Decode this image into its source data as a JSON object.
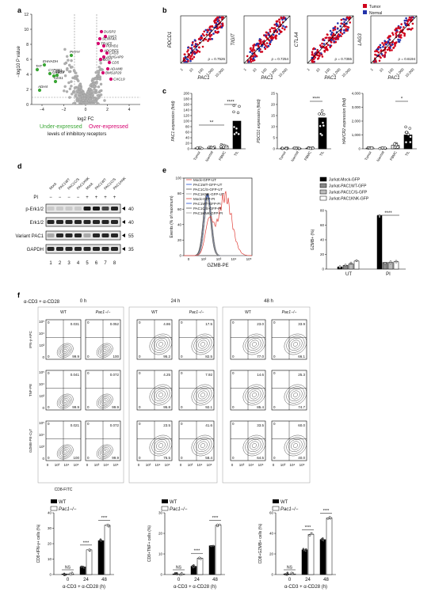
{
  "panels": {
    "a": "a",
    "b": "b",
    "c": "c",
    "d": "d",
    "e": "e",
    "f": "f"
  },
  "panel_a": {
    "ylabel": "−log10 P value",
    "xlabel": "log2 FC",
    "yticks": [
      "0",
      "2",
      "4",
      "6",
      "8",
      "10",
      "12"
    ],
    "xticks": [
      "−4",
      "−2",
      "0",
      "2",
      "4"
    ],
    "under_label": "Under-expressed",
    "over_label": "Over-expressed",
    "caption": "levels of inhibitory receptors",
    "over_genes": [
      "DUSP2",
      "JAK3",
      "SEMA4A",
      "TRAF5",
      "PDHD1",
      "ADGRE5",
      "LAG3",
      "ARHGAP9",
      "CD27",
      "CD5",
      "ADAM8",
      "BMS1P20",
      "CXCL9"
    ],
    "under_genes": [
      "PHYH",
      "EHHADH",
      "TAT",
      "CYP8B1",
      "GRB14",
      "CD70",
      "CES1",
      "ADH4"
    ],
    "colors": {
      "over": "#d6006f",
      "under": "#3aa635",
      "grey": "#b0b0b0"
    }
  },
  "panel_b": {
    "legend": [
      "Tumor",
      "Normal"
    ],
    "legend_colors": [
      "#d0021b",
      "#2233aa"
    ],
    "xlabel": "PAC1",
    "plots": [
      {
        "ylabel": "PDCD1",
        "rho": "ρ = 0.7526"
      },
      {
        "ylabel": "TIGIT",
        "rho": "ρ = 0.7254"
      },
      {
        "ylabel": "CTLA4",
        "rho": "ρ = 0.7355"
      },
      {
        "ylabel": "LAG3",
        "rho": "ρ = 0.6194"
      }
    ],
    "ticks": [
      "1",
      "10",
      "100",
      "1,000",
      "10,000"
    ]
  },
  "panel_c": {
    "groups": [
      "Tumor",
      "Normal",
      "PBMC",
      "TIL"
    ],
    "charts": [
      {
        "ylabel": "PAC1 expression (fold)",
        "ymax": 200,
        "yticks": [
          "0",
          "20",
          "40",
          "60",
          "80",
          "100",
          "120",
          "140",
          "160",
          "180",
          "200"
        ],
        "sig": [
          "**",
          "****"
        ]
      },
      {
        "ylabel": "PDCD1 expression (fold)",
        "ymax": 25,
        "yticks": [
          "0",
          "5",
          "10",
          "15",
          "20",
          "25"
        ],
        "sig": [
          "****"
        ]
      },
      {
        "ylabel": "HAVCR2 expression (fold)",
        "ymax": 4000,
        "yticks": [
          "0",
          "1,000",
          "2,000",
          "3,000",
          "4,000"
        ],
        "sig": [
          "*"
        ]
      }
    ]
  },
  "panel_d": {
    "col_headers": [
      "Mock",
      "PAC1WT",
      "PAC1C/S",
      "PAC1KNK",
      "Mock",
      "PAC1WT",
      "PAC1C/S",
      "PAC1KNK"
    ],
    "pi_label": "PI",
    "pi_signs": [
      "−",
      "−",
      "−",
      "−",
      "+",
      "+",
      "+",
      "+"
    ],
    "rows": [
      {
        "label": "p-Erk1/2",
        "kda": "40"
      },
      {
        "label": "Erk1/2",
        "kda": "40"
      },
      {
        "label": "Variant PAC1",
        "kda": "55"
      },
      {
        "label": "GAPDH",
        "kda": "35"
      }
    ],
    "lanes": [
      "1",
      "2",
      "3",
      "4",
      "5",
      "6",
      "7",
      "8"
    ]
  },
  "panel_e": {
    "flow_legend": [
      "Mock-GFP-UT",
      "PAC1WT-GFP-UT",
      "PAC1C/S-GFP-UT",
      "PAC1KNK-GFP-UT",
      "Mock-GFP-PI",
      "PAC1WT-GFP-PI",
      "PAC1C/S-GFP-PI",
      "PAC1KNK-GFP-PI"
    ],
    "flow_colors": [
      "#e0403a",
      "#1f4fd0",
      "#555555",
      "#9a9a9a",
      "#e0403a",
      "#1f4fd0",
      "#555555",
      "#9a9a9a"
    ],
    "flow_ylabel": "Events (% of maximum)",
    "flow_xlabel": "GZMB-PE",
    "bar_legend": [
      "Jurkat-Mock-GFP",
      "Jurkat-PAC1WT-GFP",
      "Jurkat-PAC1C/S-GFP",
      "Jurkat-PAC1KNK-GFP"
    ],
    "bar_ylabel": "GZMB+ (%)",
    "bar_yticks": [
      "0",
      "20",
      "40",
      "60",
      "80"
    ],
    "bar_groups": [
      "UT",
      "PI"
    ],
    "sig": "****"
  },
  "panel_f": {
    "stim": "α-CD3 + α-CD28",
    "times": [
      "0 h",
      "24 h",
      "48 h"
    ],
    "genotypes": [
      "WT",
      "Pac1−/−"
    ],
    "row_ylabels": [
      "IFN-γ-APC",
      "TNF-PE",
      "GZMB-PE-Cy7"
    ],
    "xaxis_label": "CD8-FITC",
    "quad": [
      [
        [
          "0.031",
          "99.9"
        ],
        [
          "0.052",
          "100"
        ],
        [
          "4.86",
          "95.2"
        ],
        [
          "17.5",
          "82.5"
        ],
        [
          "23.0",
          "77.0"
        ],
        [
          "33.9",
          "66.1"
        ]
      ],
      [
        [
          "0.041",
          "99.9"
        ],
        [
          "0.072",
          "99.9"
        ],
        [
          "4.25",
          "95.8"
        ],
        [
          "7.92",
          "92.1"
        ],
        [
          "14.6",
          "85.4"
        ],
        [
          "25.3",
          "74.7"
        ]
      ],
      [
        [
          "0.021",
          "100"
        ],
        [
          "0.072",
          "99.9"
        ],
        [
          "23.5",
          "76.5"
        ],
        [
          "41.6",
          "58.4"
        ],
        [
          "33.5",
          "64.5"
        ],
        [
          "60.0",
          "40.0"
        ]
      ]
    ],
    "bars": [
      {
        "ylabel": "CD8+IFN-γ+ cells (%)",
        "yticks": [
          "0",
          "10",
          "20",
          "30",
          "40"
        ],
        "ymax": 40
      },
      {
        "ylabel": "CD8+TNF+ cells (%)",
        "yticks": [
          "0",
          "10",
          "20",
          "30"
        ],
        "ymax": 30
      },
      {
        "ylabel": "CD8+GZMB+ cells (%)",
        "yticks": [
          "0",
          "20",
          "40",
          "60"
        ],
        "ymax": 60
      }
    ],
    "bar_x": [
      "0",
      "24",
      "48"
    ],
    "bar_xlabel": "α-CD3 + α-CD28 (h)",
    "sig": [
      "NS",
      "****",
      "****"
    ]
  },
  "chart_data": [
    {
      "type": "bar",
      "title": "",
      "ylabel": "PAC1 expression (fold)",
      "categories": [
        "Tumor",
        "Normal",
        "PBMC",
        "TIL"
      ],
      "values": [
        3,
        5,
        10,
        100
      ],
      "ylim": [
        0,
        200
      ]
    },
    {
      "type": "bar",
      "title": "",
      "ylabel": "PDCD1 expression (fold)",
      "categories": [
        "Tumor",
        "Normal",
        "PBMC",
        "TIL"
      ],
      "values": [
        0.2,
        0.2,
        0.3,
        14
      ],
      "ylim": [
        0,
        25
      ]
    },
    {
      "type": "bar",
      "title": "",
      "ylabel": "HAVCR2 expression (fold)",
      "categories": [
        "Tumor",
        "Normal",
        "PBMC",
        "TIL"
      ],
      "values": [
        50,
        40,
        250,
        1000
      ],
      "ylim": [
        0,
        4000
      ]
    },
    {
      "type": "bar",
      "title": "",
      "ylabel": "GZMB+ (%)",
      "categories": [
        "UT",
        "PI"
      ],
      "series": [
        {
          "name": "Jurkat-Mock-GFP",
          "values": [
            3,
            73
          ]
        },
        {
          "name": "Jurkat-PAC1WT-GFP",
          "values": [
            5,
            9
          ]
        },
        {
          "name": "Jurkat-PAC1C/S-GFP",
          "values": [
            7,
            9
          ]
        },
        {
          "name": "Jurkat-PAC1KNK-GFP",
          "values": [
            11,
            10
          ]
        }
      ],
      "ylim": [
        0,
        80
      ]
    },
    {
      "type": "bar",
      "title": "",
      "ylabel": "CD8+IFN-γ+ cells (%)",
      "categories": [
        "0",
        "24",
        "48"
      ],
      "series": [
        {
          "name": "WT",
          "values": [
            0,
            5,
            22
          ]
        },
        {
          "name": "Pac1−/−",
          "values": [
            0,
            16,
            32
          ]
        }
      ],
      "ylim": [
        0,
        40
      ]
    },
    {
      "type": "bar",
      "title": "",
      "ylabel": "CD8+TNF+ cells (%)",
      "categories": [
        "0",
        "24",
        "48"
      ],
      "series": [
        {
          "name": "WT",
          "values": [
            0,
            4,
            14
          ]
        },
        {
          "name": "Pac1−/−",
          "values": [
            0,
            8,
            24
          ]
        }
      ],
      "ylim": [
        0,
        30
      ]
    },
    {
      "type": "bar",
      "title": "",
      "ylabel": "CD8+GZMB+ cells (%)",
      "categories": [
        "0",
        "24",
        "48"
      ],
      "series": [
        {
          "name": "WT",
          "values": [
            0,
            24,
            34
          ]
        },
        {
          "name": "Pac1−/−",
          "values": [
            0,
            39,
            55
          ]
        }
      ],
      "ylim": [
        0,
        60
      ]
    }
  ]
}
